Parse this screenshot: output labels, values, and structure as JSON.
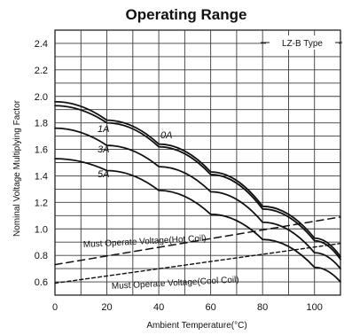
{
  "chart_data": {
    "type": "line",
    "title": "Operating Range",
    "xlabel": "Ambient Temperature(°C)",
    "ylabel": "Nominal Voltage Multiplying Factor",
    "xlim": [
      0,
      110
    ],
    "ylim": [
      0.5,
      2.5
    ],
    "x_ticks": [
      0,
      20,
      40,
      60,
      80,
      100
    ],
    "x_tick_labels": [
      "0",
      "20",
      "40",
      "60",
      "80",
      "100"
    ],
    "y_ticks": [
      0.6,
      0.8,
      1.0,
      1.2,
      1.4,
      1.6,
      1.8,
      2.0,
      2.2,
      2.4
    ],
    "y_tick_labels": [
      "0.6",
      "0.8",
      "1.0",
      "1.2",
      "1.4",
      "1.6",
      "1.8",
      "2.0",
      "2.2",
      "2.4"
    ],
    "grid": true,
    "legend": "LZ-B Type",
    "series": [
      {
        "name": "0A",
        "x": [
          0,
          20,
          40,
          60,
          80,
          100,
          110
        ],
        "y": [
          1.96,
          1.82,
          1.64,
          1.43,
          1.17,
          0.93,
          0.79
        ],
        "style": "solid"
      },
      {
        "name": "1A",
        "x": [
          0,
          20,
          40,
          60,
          80,
          100,
          110
        ],
        "y": [
          1.93,
          1.8,
          1.62,
          1.41,
          1.15,
          0.91,
          0.77
        ],
        "style": "solid"
      },
      {
        "name": "3A",
        "x": [
          0,
          20,
          40,
          60,
          80,
          100,
          110
        ],
        "y": [
          1.76,
          1.63,
          1.47,
          1.28,
          1.05,
          0.82,
          0.7
        ],
        "style": "solid"
      },
      {
        "name": "5A",
        "x": [
          0,
          20,
          40,
          60,
          80,
          100,
          110
        ],
        "y": [
          1.53,
          1.44,
          1.29,
          1.11,
          0.92,
          0.71,
          0.6
        ],
        "style": "solid"
      },
      {
        "name": "Must Operate Voltage(Hot Coil)",
        "x": [
          0,
          110
        ],
        "y": [
          0.73,
          1.09
        ],
        "style": "dashed"
      },
      {
        "name": "Must Operate Voltage(Cool Coil)",
        "x": [
          0,
          110
        ],
        "y": [
          0.59,
          0.89
        ],
        "style": "dotted"
      }
    ]
  }
}
